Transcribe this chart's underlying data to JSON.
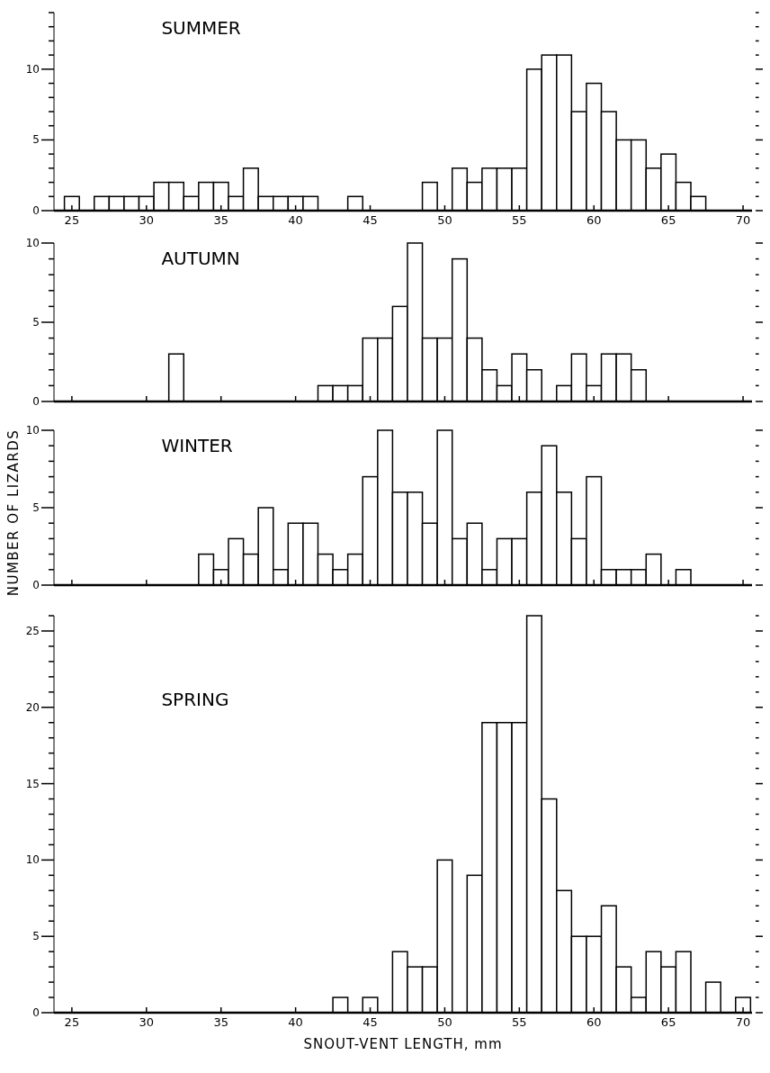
{
  "chart_data": [
    {
      "type": "histogram",
      "title": "SUMMER",
      "bins": [
        24.5,
        25.5,
        26.5,
        27.5,
        28.5,
        29.5,
        30.5,
        31.5,
        32.5,
        33.5,
        34.5,
        35.5,
        36.5,
        37.5,
        38.5,
        39.5,
        40.5,
        41.5,
        42.5,
        43.5,
        44.5,
        45.5,
        46.5,
        47.5,
        48.5,
        49.5,
        50.5,
        51.5,
        52.5,
        53.5,
        54.5,
        55.5,
        56.5,
        57.5,
        58.5,
        59.5,
        60.5,
        61.5,
        62.5,
        63.5,
        64.5,
        65.5,
        66.5,
        67.5,
        68.5,
        69.5,
        70.5
      ],
      "values": [
        1,
        0,
        1,
        1,
        1,
        1,
        2,
        2,
        1,
        2,
        2,
        1,
        3,
        1,
        1,
        1,
        1,
        0,
        0,
        1,
        0,
        0,
        0,
        0,
        2,
        0,
        3,
        2,
        3,
        3,
        3,
        10,
        11,
        11,
        7,
        9,
        7,
        5,
        5,
        3,
        4,
        2,
        1,
        0,
        0,
        0
      ],
      "xlim": [
        23.8,
        70.6
      ],
      "xticks": [
        25,
        30,
        35,
        40,
        45,
        50,
        55,
        60,
        65,
        70
      ],
      "ylim": [
        0,
        14
      ],
      "yticks": [
        0,
        {
          "value": 1,
          "label": null
        },
        {
          "value": 2,
          "label": null
        },
        {
          "value": 3,
          "label": null
        },
        {
          "value": 4,
          "label": null
        },
        5,
        {
          "value": 6,
          "label": null
        },
        {
          "value": 7,
          "label": null
        },
        {
          "value": 8,
          "label": null
        },
        {
          "value": 9,
          "label": null
        },
        10,
        {
          "value": 11,
          "label": null
        },
        {
          "value": 12,
          "label": null
        },
        {
          "value": 13,
          "label": null
        },
        {
          "value": 14,
          "label": null
        }
      ],
      "grid": false
    },
    {
      "type": "histogram",
      "title": "AUTUMN",
      "bins": [
        24.5,
        25.5,
        26.5,
        27.5,
        28.5,
        29.5,
        30.5,
        31.5,
        32.5,
        33.5,
        34.5,
        35.5,
        36.5,
        37.5,
        38.5,
        39.5,
        40.5,
        41.5,
        42.5,
        43.5,
        44.5,
        45.5,
        46.5,
        47.5,
        48.5,
        49.5,
        50.5,
        51.5,
        52.5,
        53.5,
        54.5,
        55.5,
        56.5,
        57.5,
        58.5,
        59.5,
        60.5,
        61.5,
        62.5,
        63.5,
        64.5,
        65.5,
        66.5,
        67.5,
        68.5,
        69.5,
        70.5
      ],
      "values": [
        0,
        0,
        0,
        0,
        0,
        0,
        0,
        3,
        0,
        0,
        0,
        0,
        0,
        0,
        0,
        0,
        0,
        1,
        1,
        1,
        4,
        4,
        6,
        10,
        4,
        4,
        9,
        4,
        2,
        1,
        3,
        2,
        0,
        1,
        3,
        1,
        3,
        3,
        2,
        0,
        0,
        0,
        0,
        0,
        0,
        0
      ],
      "xlim": [
        23.8,
        70.6
      ],
      "xticks": [
        25,
        30,
        35,
        40,
        45,
        50,
        55,
        60,
        65,
        70
      ],
      "ylim": [
        0,
        10
      ],
      "yticks": [
        0,
        {
          "value": 1,
          "label": null
        },
        {
          "value": 2,
          "label": null
        },
        {
          "value": 3,
          "label": null
        },
        {
          "value": 4,
          "label": null
        },
        5,
        {
          "value": 6,
          "label": null
        },
        {
          "value": 7,
          "label": null
        },
        {
          "value": 8,
          "label": null
        },
        {
          "value": 9,
          "label": null
        },
        10
      ],
      "tick_labels": "y",
      "grid": false
    },
    {
      "type": "histogram",
      "title": "WINTER",
      "ylabel": "NUMBER OF LIZARDS",
      "bins": [
        24.5,
        25.5,
        26.5,
        27.5,
        28.5,
        29.5,
        30.5,
        31.5,
        32.5,
        33.5,
        34.5,
        35.5,
        36.5,
        37.5,
        38.5,
        39.5,
        40.5,
        41.5,
        42.5,
        43.5,
        44.5,
        45.5,
        46.5,
        47.5,
        48.5,
        49.5,
        50.5,
        51.5,
        52.5,
        53.5,
        54.5,
        55.5,
        56.5,
        57.5,
        58.5,
        59.5,
        60.5,
        61.5,
        62.5,
        63.5,
        64.5,
        65.5,
        66.5,
        67.5,
        68.5,
        69.5,
        70.5
      ],
      "values": [
        0,
        0,
        0,
        0,
        0,
        0,
        0,
        0,
        0,
        2,
        1,
        3,
        2,
        5,
        1,
        4,
        4,
        2,
        1,
        2,
        7,
        10,
        6,
        6,
        4,
        10,
        3,
        4,
        1,
        3,
        3,
        6,
        9,
        6,
        3,
        7,
        1,
        1,
        1,
        2,
        0,
        1,
        0,
        0,
        0,
        0
      ],
      "xlim": [
        23.8,
        70.6
      ],
      "xticks": [
        25,
        30,
        35,
        40,
        45,
        50,
        55,
        60,
        65,
        70
      ],
      "ylim": [
        0,
        10
      ],
      "yticks": [
        0,
        {
          "value": 1,
          "label": null
        },
        {
          "value": 2,
          "label": null
        },
        {
          "value": 3,
          "label": null
        },
        {
          "value": 4,
          "label": null
        },
        5,
        {
          "value": 6,
          "label": null
        },
        {
          "value": 7,
          "label": null
        },
        {
          "value": 8,
          "label": null
        },
        {
          "value": 9,
          "label": null
        },
        10
      ],
      "tick_labels": "y",
      "grid": false
    },
    {
      "type": "histogram",
      "title": "SPRING",
      "xlabel": "SNOUT-VENT LENGTH, mm",
      "bins": [
        24.5,
        25.5,
        26.5,
        27.5,
        28.5,
        29.5,
        30.5,
        31.5,
        32.5,
        33.5,
        34.5,
        35.5,
        36.5,
        37.5,
        38.5,
        39.5,
        40.5,
        41.5,
        42.5,
        43.5,
        44.5,
        45.5,
        46.5,
        47.5,
        48.5,
        49.5,
        50.5,
        51.5,
        52.5,
        53.5,
        54.5,
        55.5,
        56.5,
        57.5,
        58.5,
        59.5,
        60.5,
        61.5,
        62.5,
        63.5,
        64.5,
        65.5,
        66.5,
        67.5,
        68.5,
        69.5,
        70.5
      ],
      "values": [
        0,
        0,
        0,
        0,
        0,
        0,
        0,
        0,
        0,
        0,
        0,
        0,
        0,
        0,
        0,
        0,
        0,
        0,
        1,
        0,
        1,
        0,
        4,
        3,
        3,
        10,
        0,
        9,
        19,
        19,
        19,
        26,
        14,
        8,
        5,
        5,
        7,
        3,
        1,
        4,
        3,
        4,
        0,
        2,
        0,
        1
      ],
      "xlim": [
        23.8,
        70.6
      ],
      "xticks": [
        25,
        30,
        35,
        40,
        45,
        50,
        55,
        60,
        65,
        70
      ],
      "ylim": [
        0,
        26
      ],
      "yticks": [
        0,
        {
          "value": 1,
          "label": null
        },
        {
          "value": 2,
          "label": null
        },
        {
          "value": 3,
          "label": null
        },
        {
          "value": 4,
          "label": null
        },
        5,
        {
          "value": 6,
          "label": null
        },
        {
          "value": 7,
          "label": null
        },
        {
          "value": 8,
          "label": null
        },
        {
          "value": 9,
          "label": null
        },
        10,
        {
          "value": 11,
          "label": null
        },
        {
          "value": 12,
          "label": null
        },
        {
          "value": 13,
          "label": null
        },
        {
          "value": 14,
          "label": null
        },
        15,
        {
          "value": 16,
          "label": null
        },
        {
          "value": 17,
          "label": null
        },
        {
          "value": 18,
          "label": null
        },
        {
          "value": 19,
          "label": null
        },
        20,
        {
          "value": 21,
          "label": null
        },
        {
          "value": 22,
          "label": null
        },
        {
          "value": 23,
          "label": null
        },
        {
          "value": 24,
          "label": null
        },
        25,
        {
          "value": 26,
          "label": null
        }
      ],
      "grid": false
    }
  ]
}
